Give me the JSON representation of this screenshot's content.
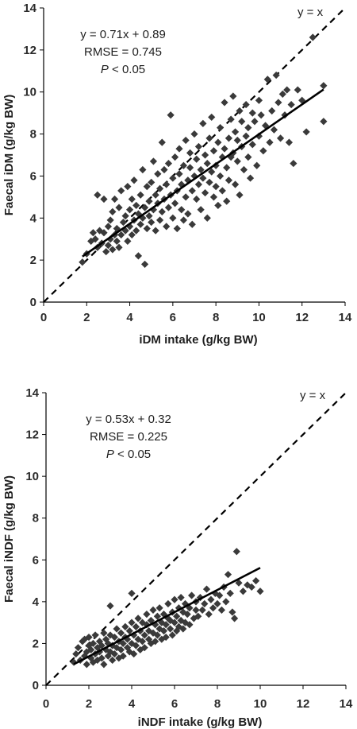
{
  "chart_data": [
    {
      "type": "scatter",
      "xlabel": "iDM intake (g/kg BW)",
      "ylabel": "Faecal iDM (g/kg BW)",
      "xlim": [
        0,
        14
      ],
      "ylim": [
        0,
        14
      ],
      "xticks": [
        "0",
        "2",
        "4",
        "6",
        "8",
        "10",
        "12",
        "14"
      ],
      "yticks": [
        "0",
        "2",
        "4",
        "6",
        "8",
        "10",
        "12",
        "14"
      ],
      "grid": false,
      "identity_label": "y = x",
      "fit": {
        "equation": "y = 0.71x + 0.89",
        "slope": 0.71,
        "intercept": 0.89,
        "x_range": [
          1.8,
          13.0
        ]
      },
      "rmse_text": "RMSE = 0.745",
      "p_prefix": "P",
      "p_suffix": " < 0.05",
      "marker_color": "#3a3a3a",
      "points": [
        [
          1.8,
          1.9
        ],
        [
          2.0,
          2.3
        ],
        [
          2.2,
          2.9
        ],
        [
          2.3,
          3.3
        ],
        [
          2.4,
          3.0
        ],
        [
          2.5,
          2.6
        ],
        [
          2.5,
          5.1
        ],
        [
          2.6,
          3.4
        ],
        [
          2.7,
          2.8
        ],
        [
          2.8,
          3.3
        ],
        [
          2.8,
          4.9
        ],
        [
          2.9,
          2.4
        ],
        [
          3.0,
          2.7
        ],
        [
          3.0,
          3.6
        ],
        [
          3.1,
          3.0
        ],
        [
          3.1,
          3.9
        ],
        [
          3.2,
          2.5
        ],
        [
          3.2,
          4.3
        ],
        [
          3.3,
          3.2
        ],
        [
          3.3,
          4.9
        ],
        [
          3.4,
          2.9
        ],
        [
          3.4,
          3.5
        ],
        [
          3.5,
          2.6
        ],
        [
          3.5,
          4.5
        ],
        [
          3.6,
          3.2
        ],
        [
          3.6,
          5.3
        ],
        [
          3.7,
          3.8
        ],
        [
          3.8,
          3.4
        ],
        [
          3.8,
          4.1
        ],
        [
          3.9,
          2.9
        ],
        [
          3.9,
          5.5
        ],
        [
          4.0,
          3.6
        ],
        [
          4.0,
          4.4
        ],
        [
          4.1,
          3.2
        ],
        [
          4.1,
          4.9
        ],
        [
          4.2,
          3.9
        ],
        [
          4.2,
          5.8
        ],
        [
          4.3,
          3.4
        ],
        [
          4.3,
          4.6
        ],
        [
          4.4,
          4.2
        ],
        [
          4.4,
          2.2
        ],
        [
          4.5,
          3.7
        ],
        [
          4.5,
          5.1
        ],
        [
          4.6,
          4.0
        ],
        [
          4.6,
          6.3
        ],
        [
          4.7,
          1.8
        ],
        [
          4.7,
          4.5
        ],
        [
          4.8,
          3.5
        ],
        [
          4.8,
          5.5
        ],
        [
          4.9,
          4.1
        ],
        [
          4.9,
          4.8
        ],
        [
          5.0,
          3.8
        ],
        [
          5.0,
          5.7
        ],
        [
          5.1,
          4.4
        ],
        [
          5.1,
          6.7
        ],
        [
          5.2,
          3.4
        ],
        [
          5.2,
          5.1
        ],
        [
          5.3,
          4.7
        ],
        [
          5.3,
          6.1
        ],
        [
          5.4,
          3.9
        ],
        [
          5.4,
          5.4
        ],
        [
          5.5,
          4.3
        ],
        [
          5.5,
          7.6
        ],
        [
          5.6,
          4.9
        ],
        [
          5.6,
          6.3
        ],
        [
          5.7,
          3.6
        ],
        [
          5.7,
          5.6
        ],
        [
          5.8,
          4.5
        ],
        [
          5.8,
          6.6
        ],
        [
          5.9,
          5.1
        ],
        [
          5.9,
          8.9
        ],
        [
          6.0,
          4.0
        ],
        [
          6.0,
          5.9
        ],
        [
          6.1,
          4.7
        ],
        [
          6.1,
          6.9
        ],
        [
          6.2,
          5.3
        ],
        [
          6.2,
          3.5
        ],
        [
          6.3,
          6.1
        ],
        [
          6.3,
          7.3
        ],
        [
          6.4,
          4.4
        ],
        [
          6.4,
          5.6
        ],
        [
          6.5,
          6.5
        ],
        [
          6.5,
          3.9
        ],
        [
          6.6,
          5.0
        ],
        [
          6.6,
          7.7
        ],
        [
          6.7,
          5.8
        ],
        [
          6.7,
          4.2
        ],
        [
          6.8,
          6.4
        ],
        [
          6.8,
          7.1
        ],
        [
          6.9,
          5.3
        ],
        [
          6.9,
          3.7
        ],
        [
          7.0,
          6.0
        ],
        [
          7.0,
          8.0
        ],
        [
          7.1,
          4.9
        ],
        [
          7.1,
          6.8
        ],
        [
          7.2,
          5.6
        ],
        [
          7.2,
          7.4
        ],
        [
          7.3,
          4.4
        ],
        [
          7.3,
          6.3
        ],
        [
          7.4,
          5.9
        ],
        [
          7.4,
          8.5
        ],
        [
          7.5,
          5.2
        ],
        [
          7.5,
          7.0
        ],
        [
          7.6,
          6.6
        ],
        [
          7.6,
          4.0
        ],
        [
          7.7,
          5.7
        ],
        [
          7.7,
          7.8
        ],
        [
          7.8,
          6.2
        ],
        [
          7.8,
          8.8
        ],
        [
          7.9,
          5.0
        ],
        [
          7.9,
          7.2
        ],
        [
          8.0,
          6.5
        ],
        [
          8.0,
          5.5
        ],
        [
          8.1,
          7.6
        ],
        [
          8.1,
          4.6
        ],
        [
          8.2,
          6.0
        ],
        [
          8.2,
          8.3
        ],
        [
          8.3,
          6.9
        ],
        [
          8.3,
          5.3
        ],
        [
          8.4,
          7.3
        ],
        [
          8.4,
          9.5
        ],
        [
          8.5,
          6.4
        ],
        [
          8.5,
          4.8
        ],
        [
          8.6,
          7.8
        ],
        [
          8.6,
          5.8
        ],
        [
          8.7,
          8.7
        ],
        [
          8.7,
          6.9
        ],
        [
          8.8,
          9.8
        ],
        [
          8.8,
          7.1
        ],
        [
          8.9,
          5.6
        ],
        [
          8.9,
          8.1
        ],
        [
          9.0,
          6.7
        ],
        [
          9.0,
          7.7
        ],
        [
          9.1,
          9.1
        ],
        [
          9.1,
          5.1
        ],
        [
          9.2,
          7.4
        ],
        [
          9.2,
          8.6
        ],
        [
          9.3,
          6.3
        ],
        [
          9.4,
          7.9
        ],
        [
          9.4,
          9.4
        ],
        [
          9.5,
          6.9
        ],
        [
          9.5,
          8.3
        ],
        [
          9.6,
          5.9
        ],
        [
          9.7,
          7.5
        ],
        [
          9.7,
          9.0
        ],
        [
          9.8,
          8.6
        ],
        [
          9.9,
          6.5
        ],
        [
          10.0,
          7.9
        ],
        [
          10.0,
          9.6
        ],
        [
          10.1,
          8.9
        ],
        [
          10.2,
          7.2
        ],
        [
          10.3,
          8.4
        ],
        [
          10.4,
          10.6
        ],
        [
          10.5,
          7.6
        ],
        [
          10.6,
          9.1
        ],
        [
          10.7,
          8.2
        ],
        [
          10.8,
          10.8
        ],
        [
          10.9,
          9.5
        ],
        [
          11.0,
          7.8
        ],
        [
          11.1,
          9.9
        ],
        [
          11.2,
          8.9
        ],
        [
          11.3,
          10.1
        ],
        [
          11.4,
          7.6
        ],
        [
          11.5,
          9.4
        ],
        [
          11.6,
          6.6
        ],
        [
          11.8,
          10.1
        ],
        [
          12.0,
          9.6
        ],
        [
          12.2,
          8.1
        ],
        [
          12.5,
          12.6
        ],
        [
          13.0,
          10.3
        ],
        [
          13.0,
          8.6
        ]
      ]
    },
    {
      "type": "scatter",
      "xlabel": "iNDF intake (g/kg BW)",
      "ylabel": "Faecal iNDF (g/kg BW)",
      "xlim": [
        0,
        14
      ],
      "ylim": [
        0,
        14
      ],
      "xticks": [
        "0",
        "2",
        "4",
        "6",
        "8",
        "10",
        "12",
        "14"
      ],
      "yticks": [
        "0",
        "2",
        "4",
        "6",
        "8",
        "10",
        "12",
        "14"
      ],
      "grid": false,
      "identity_label": "y = x",
      "fit": {
        "equation": "y = 0.53x + 0.32",
        "slope": 0.53,
        "intercept": 0.32,
        "x_range": [
          1.3,
          10.0
        ]
      },
      "rmse_text": "RMSE = 0.225",
      "p_prefix": "P",
      "p_suffix": " < 0.05",
      "marker_color": "#3a3a3a",
      "points": [
        [
          1.3,
          1.1
        ],
        [
          1.4,
          1.5
        ],
        [
          1.5,
          1.8
        ],
        [
          1.6,
          1.2
        ],
        [
          1.7,
          2.1
        ],
        [
          1.8,
          1.4
        ],
        [
          1.8,
          2.2
        ],
        [
          1.9,
          1.6
        ],
        [
          1.9,
          1.0
        ],
        [
          2.0,
          1.9
        ],
        [
          2.0,
          2.3
        ],
        [
          2.1,
          1.3
        ],
        [
          2.1,
          1.7
        ],
        [
          2.2,
          2.0
        ],
        [
          2.2,
          1.1
        ],
        [
          2.3,
          1.5
        ],
        [
          2.3,
          2.4
        ],
        [
          2.4,
          1.8
        ],
        [
          2.4,
          1.2
        ],
        [
          2.5,
          2.1
        ],
        [
          2.5,
          1.6
        ],
        [
          2.6,
          1.3
        ],
        [
          2.6,
          1.9
        ],
        [
          2.7,
          2.5
        ],
        [
          2.7,
          1.0
        ],
        [
          2.8,
          1.7
        ],
        [
          2.8,
          2.2
        ],
        [
          2.9,
          1.4
        ],
        [
          2.9,
          2.0
        ],
        [
          3.0,
          1.6
        ],
        [
          3.0,
          2.4
        ],
        [
          3.0,
          3.8
        ],
        [
          3.1,
          1.2
        ],
        [
          3.1,
          1.9
        ],
        [
          3.2,
          2.3
        ],
        [
          3.2,
          1.5
        ],
        [
          3.3,
          1.8
        ],
        [
          3.3,
          2.7
        ],
        [
          3.4,
          1.3
        ],
        [
          3.4,
          2.1
        ],
        [
          3.5,
          1.7
        ],
        [
          3.5,
          2.5
        ],
        [
          3.6,
          2.0
        ],
        [
          3.6,
          1.4
        ],
        [
          3.7,
          2.3
        ],
        [
          3.7,
          2.8
        ],
        [
          3.8,
          1.8
        ],
        [
          3.8,
          2.2
        ],
        [
          3.9,
          1.6
        ],
        [
          3.9,
          2.6
        ],
        [
          4.0,
          2.0
        ],
        [
          4.0,
          3.0
        ],
        [
          4.0,
          4.4
        ],
        [
          4.1,
          1.5
        ],
        [
          4.1,
          2.4
        ],
        [
          4.2,
          2.8
        ],
        [
          4.2,
          1.9
        ],
        [
          4.3,
          2.2
        ],
        [
          4.3,
          3.2
        ],
        [
          4.4,
          1.7
        ],
        [
          4.4,
          2.6
        ],
        [
          4.5,
          2.1
        ],
        [
          4.5,
          3.0
        ],
        [
          4.6,
          2.4
        ],
        [
          4.6,
          1.8
        ],
        [
          4.7,
          2.9
        ],
        [
          4.7,
          3.4
        ],
        [
          4.8,
          2.2
        ],
        [
          4.8,
          2.6
        ],
        [
          4.9,
          2.0
        ],
        [
          4.9,
          3.1
        ],
        [
          5.0,
          2.5
        ],
        [
          5.0,
          3.6
        ],
        [
          5.1,
          2.1
        ],
        [
          5.1,
          2.9
        ],
        [
          5.2,
          3.3
        ],
        [
          5.2,
          2.4
        ],
        [
          5.3,
          2.7
        ],
        [
          5.3,
          3.7
        ],
        [
          5.4,
          2.2
        ],
        [
          5.4,
          3.0
        ],
        [
          5.5,
          2.6
        ],
        [
          5.5,
          3.4
        ],
        [
          5.6,
          2.9
        ],
        [
          5.6,
          2.3
        ],
        [
          5.7,
          3.2
        ],
        [
          5.7,
          3.9
        ],
        [
          5.8,
          2.7
        ],
        [
          5.8,
          3.1
        ],
        [
          5.9,
          2.4
        ],
        [
          5.9,
          3.5
        ],
        [
          6.0,
          3.0
        ],
        [
          6.0,
          4.1
        ],
        [
          6.1,
          2.6
        ],
        [
          6.1,
          3.3
        ],
        [
          6.2,
          3.7
        ],
        [
          6.2,
          2.8
        ],
        [
          6.3,
          3.1
        ],
        [
          6.3,
          4.2
        ],
        [
          6.4,
          2.7
        ],
        [
          6.4,
          3.5
        ],
        [
          6.5,
          3.0
        ],
        [
          6.5,
          3.9
        ],
        [
          6.6,
          3.4
        ],
        [
          6.7,
          2.9
        ],
        [
          6.7,
          3.7
        ],
        [
          6.8,
          4.3
        ],
        [
          6.9,
          3.2
        ],
        [
          7.0,
          3.6
        ],
        [
          7.0,
          4.0
        ],
        [
          7.1,
          3.3
        ],
        [
          7.2,
          4.2
        ],
        [
          7.3,
          3.6
        ],
        [
          7.4,
          3.9
        ],
        [
          7.5,
          4.6
        ],
        [
          7.6,
          3.4
        ],
        [
          7.7,
          4.1
        ],
        [
          7.8,
          3.7
        ],
        [
          7.9,
          4.4
        ],
        [
          8.0,
          3.9
        ],
        [
          8.1,
          4.3
        ],
        [
          8.2,
          3.6
        ],
        [
          8.3,
          4.7
        ],
        [
          8.4,
          4.0
        ],
        [
          8.5,
          5.3
        ],
        [
          8.6,
          4.4
        ],
        [
          8.7,
          3.5
        ],
        [
          8.8,
          3.2
        ],
        [
          8.9,
          6.4
        ],
        [
          9.0,
          4.9
        ],
        [
          9.2,
          4.5
        ],
        [
          9.4,
          4.8
        ],
        [
          9.6,
          4.7
        ],
        [
          9.8,
          5.0
        ],
        [
          10.0,
          4.5
        ]
      ]
    }
  ]
}
